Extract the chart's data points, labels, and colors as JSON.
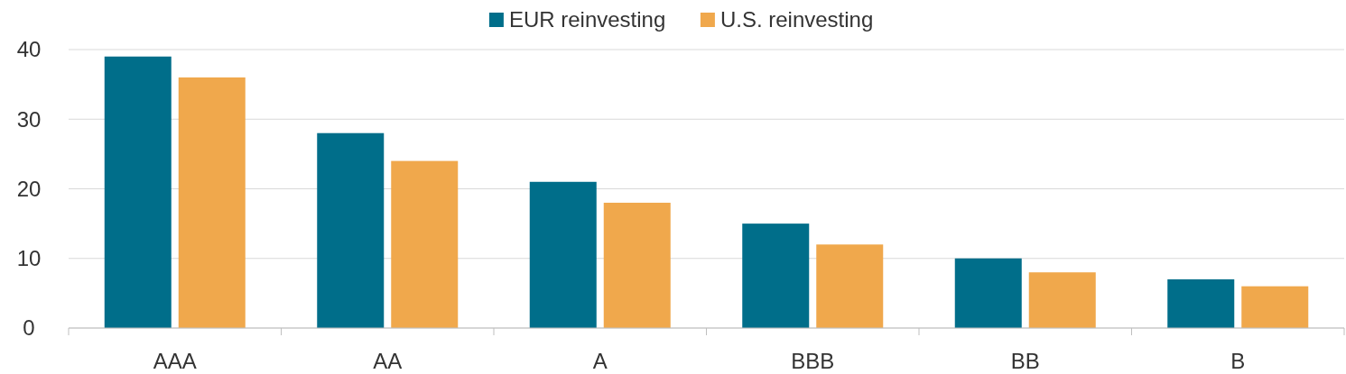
{
  "chart_data": {
    "type": "bar",
    "categories": [
      "AAA",
      "AA",
      "A",
      "BBB",
      "BB",
      "B"
    ],
    "series": [
      {
        "name": "EUR reinvesting",
        "color": "#006e8a",
        "values": [
          39,
          28,
          21,
          15,
          10,
          7
        ]
      },
      {
        "name": "U.S. reinvesting",
        "color": "#f0a84c",
        "values": [
          36,
          24,
          18,
          12,
          8,
          6
        ]
      }
    ],
    "ylim": [
      0,
      40
    ],
    "yticks": [
      0,
      10,
      20,
      30,
      40
    ],
    "grid": "y",
    "legend": "top"
  }
}
